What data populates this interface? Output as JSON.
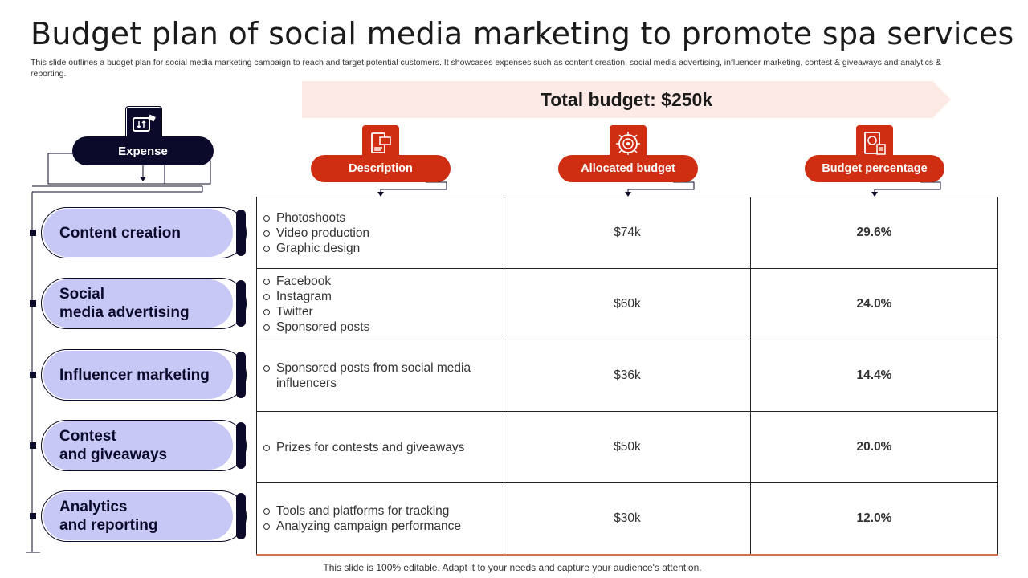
{
  "title": "Budget plan of social media marketing to promote spa services",
  "subtitle": "This slide outlines a budget plan for social media marketing campaign to reach and target potential customers. It showcases expenses such as content creation, social media advertising, influencer marketing, contest & giveaways and analytics & reporting.",
  "banner": "Total budget: $250k",
  "expense_label": "Expense",
  "headers": {
    "description": "Description",
    "allocated": "Allocated budget",
    "percentage": "Budget percentage"
  },
  "rows": [
    {
      "label_l1": "Content creation",
      "label_l2": "",
      "items": [
        "Photoshoots",
        "Video production",
        "Graphic design"
      ],
      "allocated": "$74k",
      "percentage": "29.6%"
    },
    {
      "label_l1": "Social",
      "label_l2": "media advertising",
      "items": [
        "Facebook",
        "Instagram",
        "Twitter",
        "Sponsored posts"
      ],
      "allocated": "$60k",
      "percentage": "24.0%"
    },
    {
      "label_l1": "Influencer marketing",
      "label_l2": "",
      "items": [
        "Sponsored posts from social media influencers"
      ],
      "allocated": "$36k",
      "percentage": "14.4%"
    },
    {
      "label_l1": "Contest",
      "label_l2": "and giveaways",
      "items": [
        "Prizes for contests and giveaways"
      ],
      "allocated": "$50k",
      "percentage": "20.0%"
    },
    {
      "label_l1": "Analytics",
      "label_l2": "and reporting",
      "items": [
        "Tools and platforms for tracking",
        "Analyzing campaign performance"
      ],
      "allocated": "$30k",
      "percentage": "12.0%"
    }
  ],
  "icons": {
    "expense": "money-transfer-icon",
    "description": "document-list-icon",
    "allocated": "target-icon",
    "percentage": "calculator-report-icon"
  },
  "colors": {
    "navy": "#0c0a2a",
    "accent": "#cf2e12",
    "lavender": "#c8c8f7",
    "banner": "#fde9e5"
  },
  "footer": "This slide is 100% editable. Adapt it to your needs and capture your audience's attention."
}
